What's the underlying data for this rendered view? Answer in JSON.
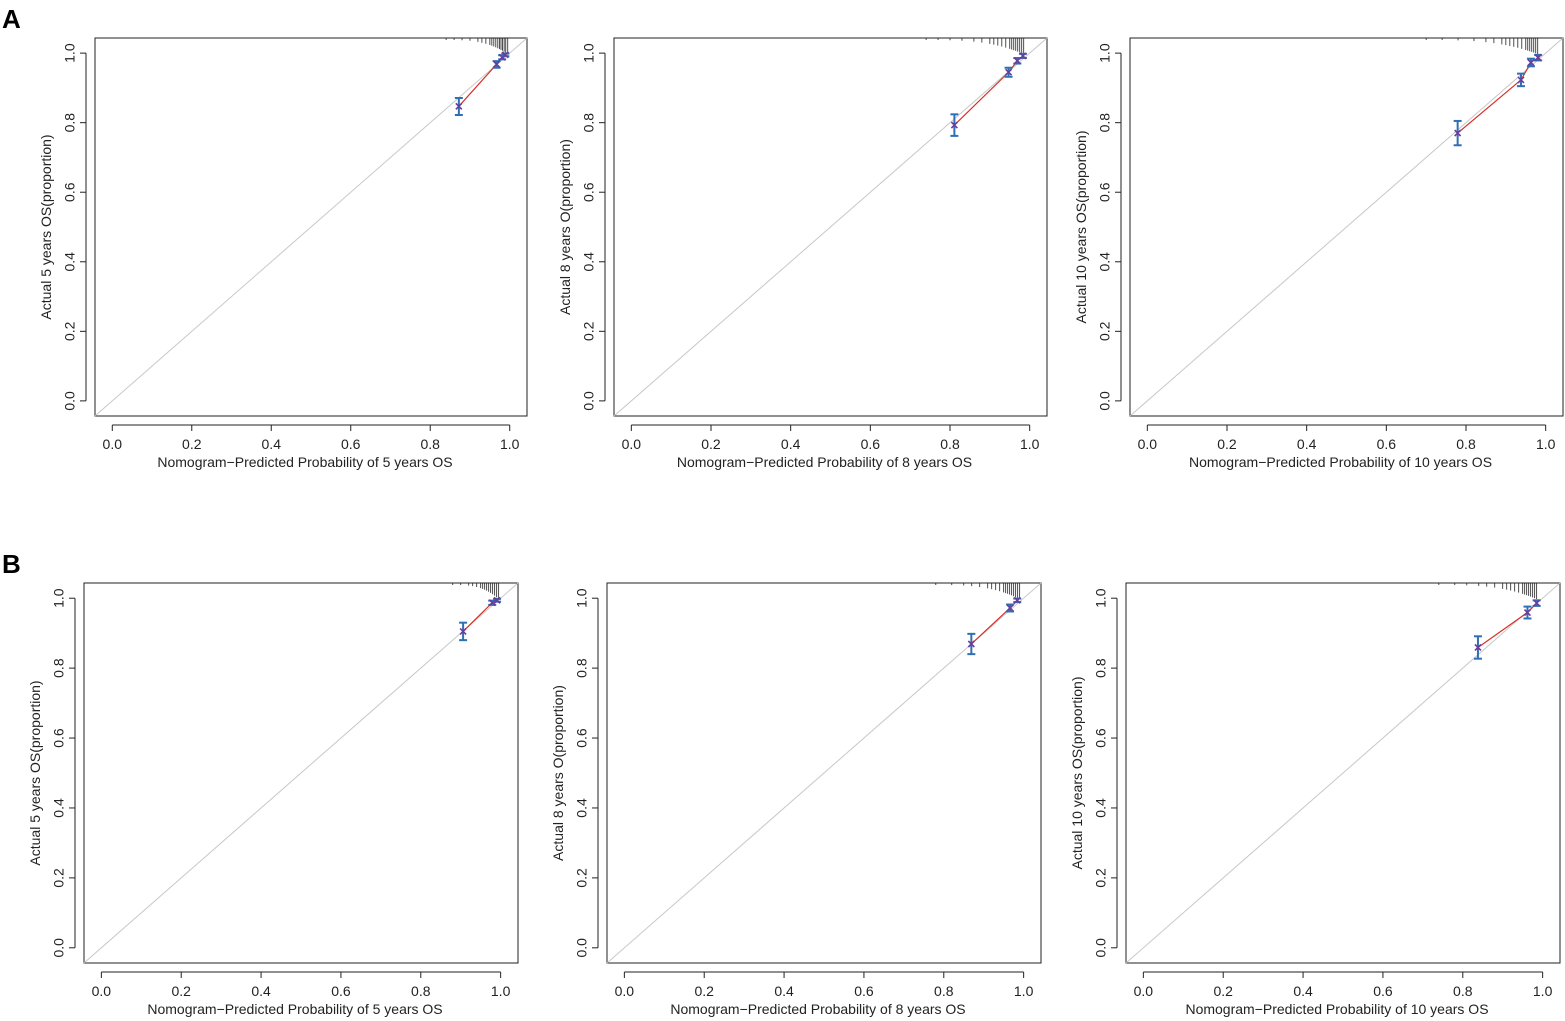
{
  "panels": [
    {
      "letter": "A"
    },
    {
      "letter": "B"
    }
  ],
  "colors": {
    "calibration_line": "#d73027",
    "error_bar": "#2f6fb5",
    "point": "#6a3d9a",
    "reference_line": "#c8c8c8",
    "axis": "#222222"
  },
  "chart_data": [
    {
      "panel": "A",
      "type": "line",
      "xlabel": "Nomogram−Predicted Probability of 5 years OS",
      "ylabel": "Actual 5 years OS(proportion)",
      "xlim": [
        0,
        1
      ],
      "ylim": [
        0,
        1
      ],
      "xticks": [
        "0.0",
        "0.2",
        "0.4",
        "0.6",
        "0.8",
        "1.0"
      ],
      "yticks": [
        "0.0",
        "0.2",
        "0.4",
        "0.6",
        "0.8",
        "1.0"
      ],
      "reference_line": "diagonal",
      "points": [
        {
          "x": 0.872,
          "y": 0.847,
          "lo": 0.822,
          "hi": 0.871
        },
        {
          "x": 0.967,
          "y": 0.968,
          "lo": 0.958,
          "hi": 0.977
        },
        {
          "x": 0.981,
          "y": 0.988,
          "lo": 0.982,
          "hi": 0.994
        },
        {
          "x": 0.989,
          "y": 0.995,
          "lo": 0.991,
          "hi": 0.999
        }
      ],
      "rug": [
        0.84,
        0.86,
        0.88,
        0.9,
        0.92,
        0.93,
        0.94,
        0.95,
        0.955,
        0.96,
        0.965,
        0.97,
        0.974,
        0.978,
        0.982,
        0.986,
        0.99,
        0.995
      ]
    },
    {
      "panel": "A",
      "type": "line",
      "xlabel": "Nomogram−Predicted Probability of 8 years OS",
      "ylabel": "Actual 8 years O(proportion)",
      "xlim": [
        0,
        1
      ],
      "ylim": [
        0,
        1
      ],
      "xticks": [
        "0.0",
        "0.2",
        "0.4",
        "0.6",
        "0.8",
        "1.0"
      ],
      "yticks": [
        "0.0",
        "0.2",
        "0.4",
        "0.6",
        "0.8",
        "1.0"
      ],
      "reference_line": "diagonal",
      "points": [
        {
          "x": 0.811,
          "y": 0.793,
          "lo": 0.762,
          "hi": 0.824
        },
        {
          "x": 0.947,
          "y": 0.945,
          "lo": 0.932,
          "hi": 0.958
        },
        {
          "x": 0.969,
          "y": 0.978,
          "lo": 0.97,
          "hi": 0.986
        },
        {
          "x": 0.983,
          "y": 0.992,
          "lo": 0.986,
          "hi": 0.998
        }
      ],
      "rug": [
        0.74,
        0.77,
        0.8,
        0.83,
        0.86,
        0.88,
        0.9,
        0.91,
        0.92,
        0.93,
        0.94,
        0.95,
        0.955,
        0.96,
        0.965,
        0.97,
        0.975,
        0.98,
        0.985
      ]
    },
    {
      "panel": "A",
      "type": "line",
      "xlabel": "Nomogram−Predicted Probability of 10 years OS",
      "ylabel": "Actual 10 years OS(proportion)",
      "xlim": [
        0,
        1
      ],
      "ylim": [
        0,
        1
      ],
      "xticks": [
        "0.0",
        "0.2",
        "0.4",
        "0.6",
        "0.8",
        "1.0"
      ],
      "yticks": [
        "0.0",
        "0.2",
        "0.4",
        "0.6",
        "0.8",
        "1.0"
      ],
      "reference_line": "diagonal",
      "points": [
        {
          "x": 0.779,
          "y": 0.77,
          "lo": 0.735,
          "hi": 0.805
        },
        {
          "x": 0.938,
          "y": 0.923,
          "lo": 0.905,
          "hi": 0.941
        },
        {
          "x": 0.963,
          "y": 0.973,
          "lo": 0.962,
          "hi": 0.984
        },
        {
          "x": 0.981,
          "y": 0.987,
          "lo": 0.979,
          "hi": 0.995
        }
      ],
      "rug": [
        0.7,
        0.74,
        0.78,
        0.82,
        0.85,
        0.87,
        0.89,
        0.9,
        0.91,
        0.92,
        0.93,
        0.94,
        0.95,
        0.955,
        0.96,
        0.965,
        0.97,
        0.975,
        0.98
      ]
    },
    {
      "panel": "B",
      "type": "line",
      "xlabel": "Nomogram−Predicted Probability of 5 years OS",
      "ylabel": "Actual 5 years OS(proportion)",
      "xlim": [
        0,
        1
      ],
      "ylim": [
        0,
        1
      ],
      "xticks": [
        "0.0",
        "0.2",
        "0.4",
        "0.6",
        "0.8",
        "1.0"
      ],
      "yticks": [
        "0.0",
        "0.2",
        "0.4",
        "0.6",
        "0.8",
        "1.0"
      ],
      "reference_line": "diagonal",
      "points": [
        {
          "x": 0.906,
          "y": 0.905,
          "lo": 0.88,
          "hi": 0.93
        },
        {
          "x": 0.979,
          "y": 0.987,
          "lo": 0.981,
          "hi": 0.993
        },
        {
          "x": 0.991,
          "y": 0.994,
          "lo": 0.99,
          "hi": 0.998
        }
      ],
      "rug": [
        0.88,
        0.9,
        0.92,
        0.93,
        0.94,
        0.95,
        0.955,
        0.96,
        0.965,
        0.97,
        0.975,
        0.98,
        0.985,
        0.99,
        0.995
      ]
    },
    {
      "panel": "B",
      "type": "line",
      "xlabel": "Nomogram−Predicted Probability of 8 years OS",
      "ylabel": "Actual 8 years O(proportion)",
      "xlim": [
        0,
        1
      ],
      "ylim": [
        0,
        1
      ],
      "xticks": [
        "0.0",
        "0.2",
        "0.4",
        "0.6",
        "0.8",
        "1.0"
      ],
      "yticks": [
        "0.0",
        "0.2",
        "0.4",
        "0.6",
        "0.8",
        "1.0"
      ],
      "reference_line": "diagonal",
      "points": [
        {
          "x": 0.869,
          "y": 0.869,
          "lo": 0.84,
          "hi": 0.898
        },
        {
          "x": 0.966,
          "y": 0.972,
          "lo": 0.962,
          "hi": 0.982
        },
        {
          "x": 0.984,
          "y": 0.994,
          "lo": 0.989,
          "hi": 0.999
        }
      ],
      "rug": [
        0.78,
        0.82,
        0.85,
        0.87,
        0.89,
        0.91,
        0.92,
        0.93,
        0.94,
        0.95,
        0.955,
        0.96,
        0.965,
        0.97,
        0.975,
        0.98,
        0.985,
        0.99
      ]
    },
    {
      "panel": "B",
      "type": "line",
      "xlabel": "Nomogram−Predicted Probability of 10 years OS",
      "ylabel": "Actual 10 years OS(proportion)",
      "xlim": [
        0,
        1
      ],
      "ylim": [
        0,
        1
      ],
      "xticks": [
        "0.0",
        "0.2",
        "0.4",
        "0.6",
        "0.8",
        "1.0"
      ],
      "yticks": [
        "0.0",
        "0.2",
        "0.4",
        "0.6",
        "0.8",
        "1.0"
      ],
      "reference_line": "diagonal",
      "points": [
        {
          "x": 0.838,
          "y": 0.859,
          "lo": 0.827,
          "hi": 0.891
        },
        {
          "x": 0.962,
          "y": 0.959,
          "lo": 0.942,
          "hi": 0.976
        },
        {
          "x": 0.985,
          "y": 0.986,
          "lo": 0.978,
          "hi": 0.994
        }
      ],
      "rug": [
        0.74,
        0.78,
        0.81,
        0.84,
        0.86,
        0.88,
        0.9,
        0.91,
        0.92,
        0.93,
        0.94,
        0.95,
        0.955,
        0.96,
        0.965,
        0.97,
        0.975,
        0.98,
        0.985
      ]
    }
  ]
}
